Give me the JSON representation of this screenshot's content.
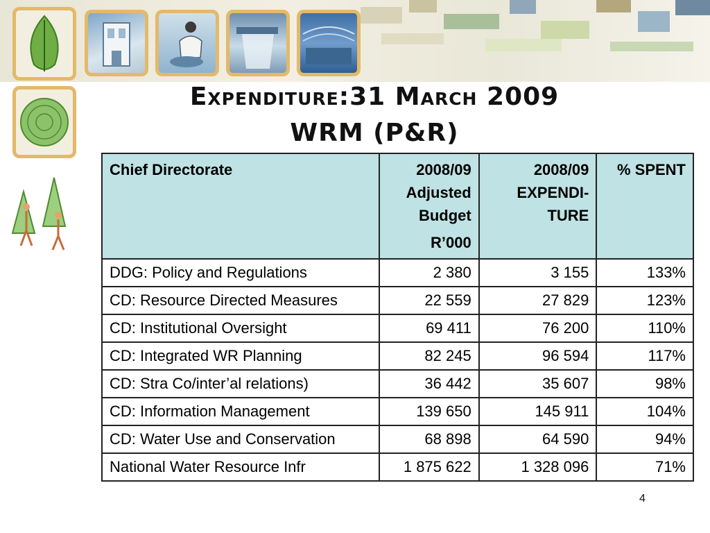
{
  "slide": {
    "title_line1": "Expenditure:31 March 2009",
    "title_line2": "WRM (P&R)",
    "page_number": "4"
  },
  "table": {
    "headers": {
      "col1": "Chief Directorate",
      "col2": "2008/09 Adjusted Budget",
      "col2_sub": "R’000",
      "col3": "2008/09 EXPENDI-TURE",
      "col4": "% SPENT"
    },
    "rows": [
      {
        "name": "DDG: Policy and Regulations",
        "budget": "2 380",
        "expenditure": "3 155",
        "spent": "133%"
      },
      {
        "name": "CD: Resource Directed Measures",
        "budget": "22 559",
        "expenditure": "27 829",
        "spent": "123%"
      },
      {
        "name": "CD: Institutional Oversight",
        "budget": "69 411",
        "expenditure": "76 200",
        "spent": "110%"
      },
      {
        "name": "CD: Integrated WR Planning",
        "budget": "82 245",
        "expenditure": "96 594",
        "spent": "117%"
      },
      {
        "name": "CD: Stra Co/inter’al relations)",
        "budget": "36 442",
        "expenditure": "35 607",
        "spent": "98%"
      },
      {
        "name": "CD: Information Management",
        "budget": "139 650",
        "expenditure": "145 911",
        "spent": "104%"
      },
      {
        "name": "CD: Water Use and Conservation",
        "budget": "68 898",
        "expenditure": "64 590",
        "spent": "94%"
      },
      {
        "name": "National Water Resource Infr",
        "budget": "1 875 622",
        "expenditure": "1 328 096",
        "spent": "71%"
      }
    ]
  },
  "colors": {
    "header_bg": "#bfe2e4",
    "tile_border": "#e3b96a",
    "border": "#222222"
  }
}
